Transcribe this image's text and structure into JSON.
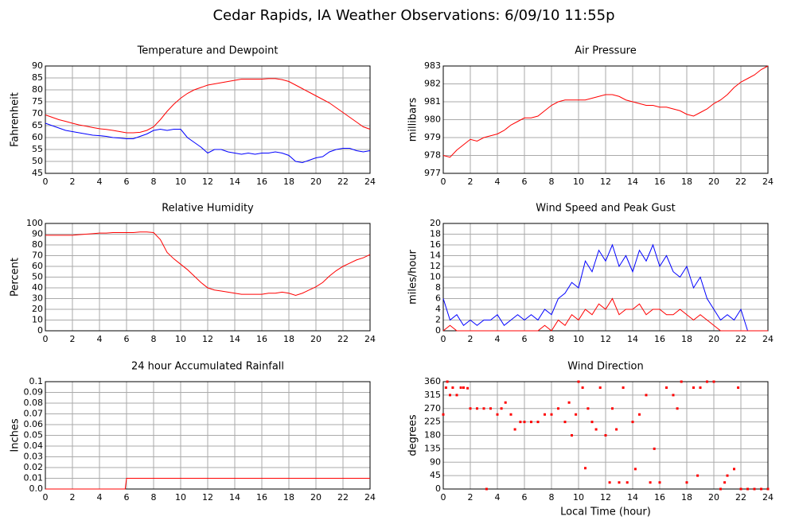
{
  "title": "Cedar Rapids, IA Weather Observations: 6/09/10 11:55p",
  "chart_data": [
    {
      "type": "line",
      "title": "Temperature and Dewpoint",
      "ylabel": "Fahrenheit",
      "x": [
        0,
        0.5,
        1,
        1.5,
        2,
        2.5,
        3,
        3.5,
        4,
        4.5,
        5,
        5.5,
        6,
        6.5,
        7,
        7.5,
        8,
        8.5,
        9,
        9.5,
        10,
        10.5,
        11,
        11.5,
        12,
        12.5,
        13,
        13.5,
        14,
        14.5,
        15,
        15.5,
        16,
        16.5,
        17,
        17.5,
        18,
        18.5,
        19,
        19.5,
        20,
        20.5,
        21,
        21.5,
        22,
        22.5,
        23,
        23.5,
        24
      ],
      "series": [
        {
          "color": "#ff0000",
          "values": [
            69.5,
            68.5,
            67.5,
            66.8,
            66,
            65.3,
            64.8,
            64.2,
            63.7,
            63.4,
            63,
            62.5,
            62,
            62,
            62.2,
            63,
            64.5,
            67.5,
            71,
            74,
            76.5,
            78.5,
            80,
            81,
            82,
            82.5,
            83,
            83.5,
            84,
            84.5,
            84.5,
            84.5,
            84.5,
            84.7,
            84.7,
            84.3,
            83.5,
            82,
            80.5,
            79,
            77.5,
            76,
            74.5,
            72.5,
            70.5,
            68.5,
            66.5,
            64.5,
            63.5
          ]
        },
        {
          "color": "#0000ff",
          "values": [
            66,
            65,
            64,
            63,
            62.5,
            62,
            61.5,
            61,
            60.8,
            60.5,
            60,
            59.8,
            59.5,
            59.5,
            60.5,
            61.5,
            63,
            63.5,
            63,
            63.5,
            63.5,
            60,
            58,
            56,
            53.5,
            55,
            55,
            54,
            53.5,
            53,
            53.5,
            53,
            53.5,
            53.5,
            54,
            53.5,
            52.5,
            50,
            49.5,
            50.5,
            51.5,
            52,
            54,
            55,
            55.5,
            55.5,
            54.5,
            54,
            54.5
          ]
        }
      ],
      "xlim": [
        0,
        24
      ],
      "xticks": [
        0,
        2,
        4,
        6,
        8,
        10,
        12,
        14,
        16,
        18,
        20,
        22,
        24
      ],
      "ylim": [
        45,
        90
      ],
      "yticks": [
        45,
        50,
        55,
        60,
        65,
        70,
        75,
        80,
        85,
        90
      ],
      "grid": true
    },
    {
      "type": "line",
      "title": "Air Pressure",
      "ylabel": "millibars",
      "x": [
        0,
        0.5,
        1,
        1.5,
        2,
        2.5,
        3,
        3.5,
        4,
        4.5,
        5,
        5.5,
        6,
        6.5,
        7,
        7.5,
        8,
        8.5,
        9,
        9.5,
        10,
        10.5,
        11,
        11.5,
        12,
        12.5,
        13,
        13.5,
        14,
        14.5,
        15,
        15.5,
        16,
        16.5,
        17,
        17.5,
        18,
        18.5,
        19,
        19.5,
        20,
        20.5,
        21,
        21.5,
        22,
        22.5,
        23,
        23.5,
        24
      ],
      "series": [
        {
          "color": "#ff0000",
          "values": [
            978,
            977.9,
            978.3,
            978.6,
            978.9,
            978.8,
            979,
            979.1,
            979.2,
            979.4,
            979.7,
            979.9,
            980.1,
            980.1,
            980.2,
            980.5,
            980.8,
            981,
            981.1,
            981.1,
            981.1,
            981.1,
            981.2,
            981.3,
            981.4,
            981.4,
            981.3,
            981.1,
            981,
            980.9,
            980.8,
            980.8,
            980.7,
            980.7,
            980.6,
            980.5,
            980.3,
            980.2,
            980.4,
            980.6,
            980.9,
            981.1,
            981.4,
            981.8,
            982.1,
            982.3,
            982.5,
            982.8,
            983
          ]
        }
      ],
      "xlim": [
        0,
        24
      ],
      "xticks": [
        0,
        2,
        4,
        6,
        8,
        10,
        12,
        14,
        16,
        18,
        20,
        22,
        24
      ],
      "ylim": [
        977,
        983
      ],
      "yticks": [
        977,
        978,
        979,
        980,
        981,
        982,
        983
      ],
      "grid": true
    },
    {
      "type": "line",
      "title": "Relative Humidity",
      "ylabel": "Percent",
      "x": [
        0,
        0.5,
        1,
        1.5,
        2,
        2.5,
        3,
        3.5,
        4,
        4.5,
        5,
        5.5,
        6,
        6.5,
        7,
        7.5,
        8,
        8.5,
        9,
        9.5,
        10,
        10.5,
        11,
        11.5,
        12,
        12.5,
        13,
        13.5,
        14,
        14.5,
        15,
        15.5,
        16,
        16.5,
        17,
        17.5,
        18,
        18.5,
        19,
        19.5,
        20,
        20.5,
        21,
        21.5,
        22,
        22.5,
        23,
        23.5,
        24
      ],
      "series": [
        {
          "color": "#ff0000",
          "values": [
            89,
            89,
            89,
            89,
            89,
            89.5,
            90,
            90.5,
            91,
            91,
            91.5,
            91.5,
            91.5,
            91.5,
            92,
            92,
            91.5,
            85,
            73,
            67,
            62,
            57,
            51,
            45,
            40,
            38,
            37,
            36,
            35,
            34,
            34,
            34,
            34,
            35,
            35,
            36,
            35,
            33,
            35,
            38,
            41,
            45,
            51,
            56,
            60,
            63,
            66,
            68,
            71
          ]
        }
      ],
      "xlim": [
        0,
        24
      ],
      "xticks": [
        0,
        2,
        4,
        6,
        8,
        10,
        12,
        14,
        16,
        18,
        20,
        22,
        24
      ],
      "ylim": [
        0,
        100
      ],
      "yticks": [
        0,
        10,
        20,
        30,
        40,
        50,
        60,
        70,
        80,
        90,
        100
      ],
      "grid": true
    },
    {
      "type": "line",
      "title": "Wind Speed and Peak Gust",
      "ylabel": "miles/hour",
      "x": [
        0,
        0.5,
        1,
        1.5,
        2,
        2.5,
        3,
        3.5,
        4,
        4.5,
        5,
        5.5,
        6,
        6.5,
        7,
        7.5,
        8,
        8.5,
        9,
        9.5,
        10,
        10.5,
        11,
        11.5,
        12,
        12.5,
        13,
        13.5,
        14,
        14.5,
        15,
        15.5,
        16,
        16.5,
        17,
        17.5,
        18,
        18.5,
        19,
        19.5,
        20,
        20.5,
        21,
        21.5,
        22,
        22.5,
        23,
        23.5,
        24
      ],
      "series": [
        {
          "color": "#0000ff",
          "values": [
            6,
            2,
            3,
            1,
            2,
            1,
            2,
            2,
            3,
            1,
            2,
            3,
            2,
            3,
            2,
            4,
            3,
            6,
            7,
            9,
            8,
            13,
            11,
            15,
            13,
            16,
            12,
            14,
            11,
            15,
            13,
            16,
            12,
            14,
            11,
            10,
            12,
            8,
            10,
            6,
            4,
            2,
            3,
            2,
            4,
            0,
            0,
            0,
            0
          ]
        },
        {
          "color": "#ff0000",
          "values": [
            0,
            1,
            0,
            0,
            0,
            0,
            0,
            0,
            0,
            0,
            0,
            0,
            0,
            0,
            0,
            1,
            0,
            2,
            1,
            3,
            2,
            4,
            3,
            5,
            4,
            6,
            3,
            4,
            4,
            5,
            3,
            4,
            4,
            3,
            3,
            4,
            3,
            2,
            3,
            2,
            1,
            0,
            0,
            0,
            0,
            0,
            0,
            0,
            0
          ]
        }
      ],
      "xlim": [
        0,
        24
      ],
      "xticks": [
        0,
        2,
        4,
        6,
        8,
        10,
        12,
        14,
        16,
        18,
        20,
        22,
        24
      ],
      "ylim": [
        0,
        20
      ],
      "yticks": [
        0,
        2,
        4,
        6,
        8,
        10,
        12,
        14,
        16,
        18,
        20
      ],
      "grid": true
    },
    {
      "type": "line",
      "title": "24 hour Accumulated Rainfall",
      "ylabel": "Inches",
      "x": [
        0,
        5.9,
        6,
        24
      ],
      "series": [
        {
          "color": "#ff0000",
          "values": [
            0,
            0,
            0.01,
            0.01
          ]
        }
      ],
      "xlim": [
        0,
        24
      ],
      "xticks": [
        0,
        2,
        4,
        6,
        8,
        10,
        12,
        14,
        16,
        18,
        20,
        22,
        24
      ],
      "ylim": [
        0,
        0.1
      ],
      "yticks": [
        {
          "value": 0,
          "label": "0.0"
        },
        0.01,
        0.02,
        0.03,
        0.04,
        0.05,
        0.06,
        0.07,
        0.08,
        0.09,
        0.1
      ],
      "grid": true
    },
    {
      "type": "scatter",
      "title": "Wind Direction",
      "ylabel": "degrees",
      "xlabel": "Local Time (hour)",
      "x": [
        0,
        0.2,
        0.3,
        0.5,
        0.7,
        1,
        1.3,
        1.5,
        1.8,
        2,
        2.5,
        3,
        3.2,
        3.5,
        4,
        4.3,
        4.6,
        5,
        5.3,
        5.7,
        6,
        6.5,
        7,
        7.5,
        8,
        8.5,
        9,
        9.3,
        9.5,
        9.8,
        10,
        10.3,
        10.5,
        10.7,
        11,
        11.3,
        11.6,
        12,
        12.3,
        12.5,
        12.8,
        13,
        13.3,
        13.6,
        14,
        14.2,
        14.5,
        15,
        15.3,
        15.6,
        16,
        16.5,
        17,
        17.3,
        17.6,
        18,
        18.5,
        18.8,
        19,
        19.5,
        20,
        20.5,
        20.8,
        21,
        21.5,
        21.8,
        22,
        22.5,
        23,
        23.5,
        24
      ],
      "series": [
        {
          "color": "#ff0000",
          "values": [
            250,
            340,
            360,
            315,
            340,
            315,
            340,
            340,
            338,
            270,
            270,
            270,
            0,
            270,
            250,
            270,
            290,
            250,
            200,
            225,
            225,
            225,
            225,
            250,
            250,
            270,
            225,
            290,
            180,
            250,
            360,
            340,
            70,
            270,
            225,
            200,
            340,
            180,
            22,
            270,
            200,
            22,
            340,
            22,
            225,
            67,
            250,
            315,
            22,
            135,
            22,
            340,
            315,
            270,
            360,
            22,
            340,
            45,
            340,
            360,
            360,
            0,
            22,
            45,
            67,
            340,
            0,
            0,
            0,
            0,
            0
          ]
        }
      ],
      "xlim": [
        0,
        24
      ],
      "xticks": [
        0,
        2,
        4,
        6,
        8,
        10,
        12,
        14,
        16,
        18,
        20,
        22,
        24
      ],
      "ylim": [
        0,
        360
      ],
      "yticks": [
        0,
        45,
        90,
        135,
        180,
        225,
        270,
        315,
        360
      ],
      "grid": true
    }
  ]
}
